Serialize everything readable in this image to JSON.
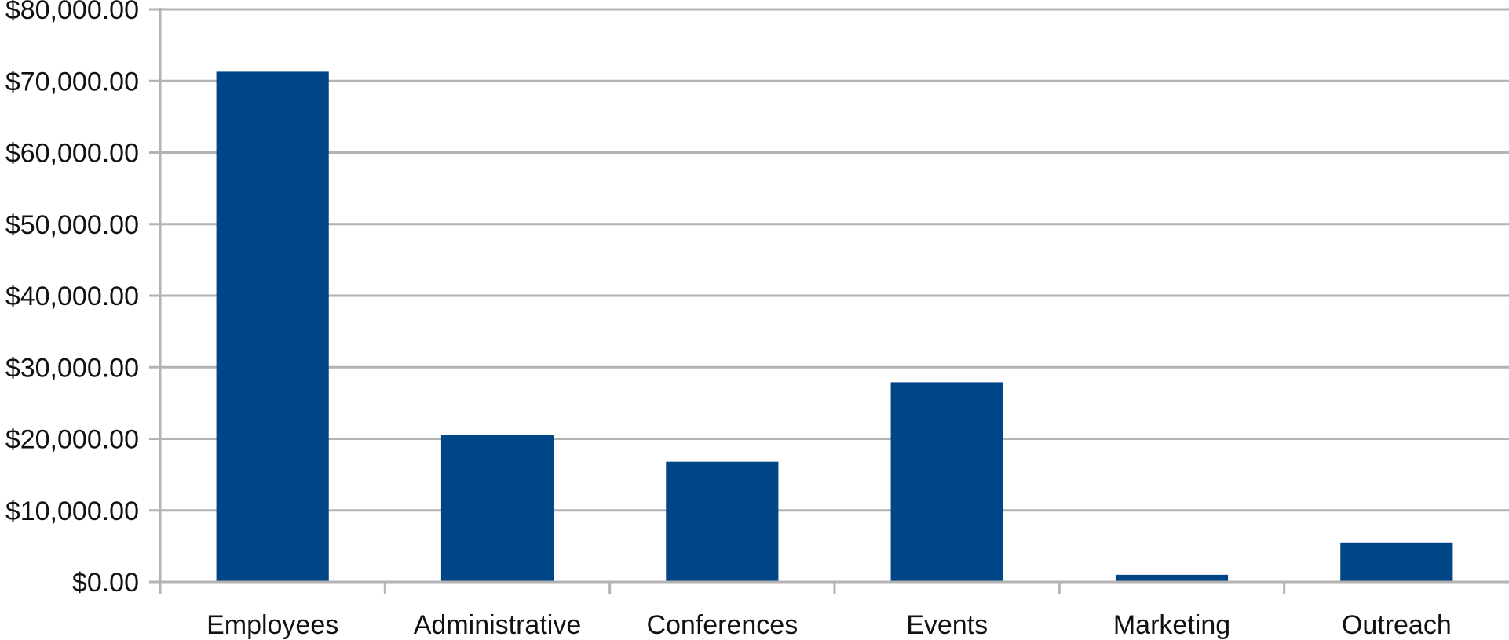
{
  "chart_data": {
    "type": "bar",
    "title": "",
    "xlabel": "",
    "ylabel": "",
    "categories": [
      "Employees",
      "Administrative",
      "Conferences",
      "Events",
      "Marketing",
      "Outreach"
    ],
    "values": [
      71300,
      20600,
      16800,
      27900,
      1000,
      5500
    ],
    "ylim": [
      0,
      80000
    ],
    "yticks": [
      0,
      10000,
      20000,
      30000,
      40000,
      50000,
      60000,
      70000,
      80000
    ],
    "ytick_labels": [
      "$0.00",
      "$10,000.00",
      "$20,000.00",
      "$30,000.00",
      "$40,000.00",
      "$50,000.00",
      "$60,000.00",
      "$70,000.00",
      "$80,000.00"
    ],
    "grid": true,
    "legend": "none",
    "colors": {
      "bar": "#004586",
      "grid": "#b3b3b3",
      "text": "#111111"
    }
  }
}
